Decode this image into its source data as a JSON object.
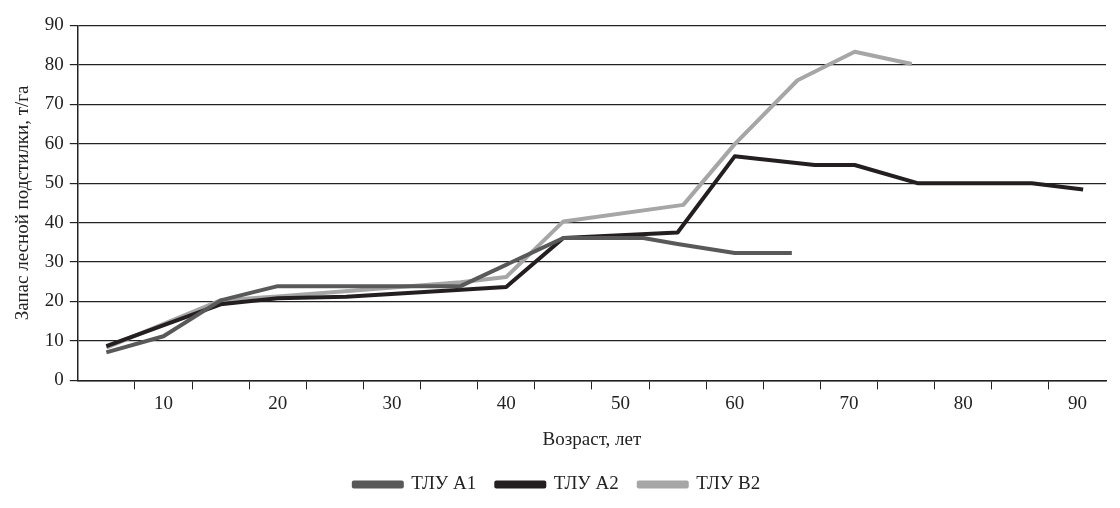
{
  "chart_data": {
    "type": "line",
    "xlabel": "Возраст, лет",
    "ylabel": "Запас лесной подстилки, т/га",
    "xlim": [
      2.5,
      92.5
    ],
    "xticks": [
      {
        "value": 7.5,
        "label": null
      },
      {
        "value": 10,
        "label": "10"
      },
      {
        "value": 12.5,
        "label": null
      },
      {
        "value": 17.5,
        "label": null
      },
      {
        "value": 20,
        "label": "20"
      },
      {
        "value": 22.5,
        "label": null
      },
      {
        "value": 27.5,
        "label": null
      },
      {
        "value": 30,
        "label": "30"
      },
      {
        "value": 32.5,
        "label": null
      },
      {
        "value": 37.5,
        "label": null
      },
      {
        "value": 40,
        "label": "40"
      },
      {
        "value": 42.5,
        "label": null
      },
      {
        "value": 47.5,
        "label": null
      },
      {
        "value": 50,
        "label": "50"
      },
      {
        "value": 52.5,
        "label": null
      },
      {
        "value": 57.5,
        "label": null
      },
      {
        "value": 60,
        "label": "60"
      },
      {
        "value": 62.5,
        "label": null
      },
      {
        "value": 67.5,
        "label": null
      },
      {
        "value": 70,
        "label": "70"
      },
      {
        "value": 72.5,
        "label": null
      },
      {
        "value": 77.5,
        "label": null
      },
      {
        "value": 80,
        "label": "80"
      },
      {
        "value": 82.5,
        "label": null
      },
      {
        "value": 87.5,
        "label": null
      },
      {
        "value": 90,
        "label": "90"
      }
    ],
    "ylim": [
      0,
      90
    ],
    "yticks": [
      0,
      10,
      20,
      30,
      40,
      50,
      60,
      70,
      80,
      90
    ],
    "grid": "y",
    "legend": "bottom",
    "marker": "none",
    "line_style": "solid",
    "series": [
      {
        "name": "ТЛУ А1",
        "color": "#595959",
        "x": [
          5,
          10,
          15,
          20,
          36,
          45,
          52,
          55,
          60,
          65
        ],
        "values": [
          7.1,
          11.2,
          20.3,
          23.9,
          23.9,
          36.1,
          36.1,
          34.6,
          32.3,
          32.3
        ]
      },
      {
        "name": "ТЛУ А2",
        "color": "#231f20",
        "x": [
          5,
          15,
          20,
          26,
          40,
          45,
          55,
          60,
          67,
          70.5,
          76,
          86,
          90.5
        ],
        "values": [
          8.7,
          19.3,
          20.8,
          21.2,
          23.7,
          36.1,
          37.5,
          56.8,
          54.6,
          54.6,
          50,
          50,
          48.4
        ]
      },
      {
        "name": "ТЛУ В2",
        "color": "#a6a6a6",
        "x": [
          5,
          15,
          20,
          36,
          40,
          45,
          55.5,
          60,
          65.5,
          70.5,
          75.5
        ],
        "values": [
          8.3,
          20.3,
          21.3,
          24.9,
          26.2,
          40.3,
          44.5,
          59.9,
          76.1,
          83.3,
          80.2
        ]
      }
    ]
  }
}
